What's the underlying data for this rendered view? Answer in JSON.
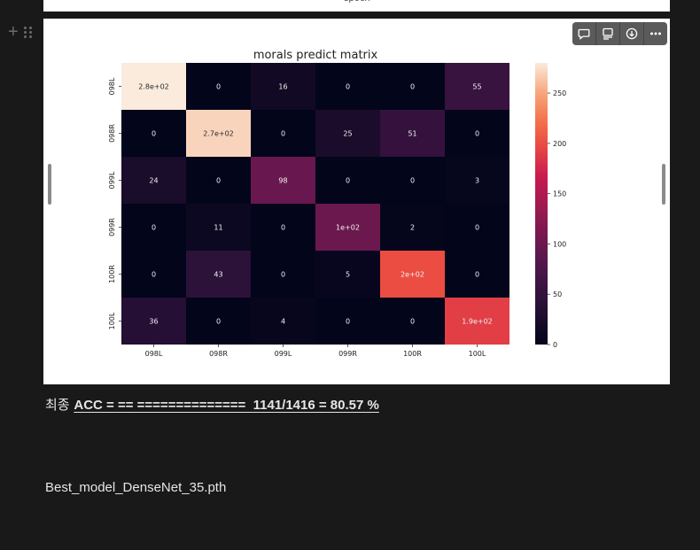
{
  "previous_block": {
    "caption": "epoch"
  },
  "toolbar": {
    "icons": [
      "comment-icon",
      "caption-icon",
      "download-icon",
      "more-icon"
    ]
  },
  "chart_data": {
    "type": "heatmap",
    "title": "morals predict matrix",
    "rows": [
      "098L",
      "098R",
      "099L",
      "099R",
      "100R",
      "100L"
    ],
    "cols": [
      "098L",
      "098R",
      "099L",
      "099R",
      "100R",
      "100L"
    ],
    "values": [
      [
        280,
        0,
        16,
        0,
        0,
        55
      ],
      [
        0,
        270,
        0,
        25,
        51,
        0
      ],
      [
        24,
        0,
        98,
        0,
        0,
        3
      ],
      [
        0,
        11,
        0,
        100,
        2,
        0
      ],
      [
        0,
        43,
        0,
        5,
        200,
        0
      ],
      [
        36,
        0,
        4,
        0,
        0,
        190
      ]
    ],
    "labels": [
      [
        "2.8e+02",
        "0",
        "16",
        "0",
        "0",
        "55"
      ],
      [
        "0",
        "2.7e+02",
        "0",
        "25",
        "51",
        "0"
      ],
      [
        "24",
        "0",
        "98",
        "0",
        "0",
        "3"
      ],
      [
        "0",
        "11",
        "0",
        "1e+02",
        "2",
        "0"
      ],
      [
        "0",
        "43",
        "0",
        "5",
        "2e+02",
        "0"
      ],
      [
        "36",
        "0",
        "4",
        "0",
        "0",
        "1.9e+02"
      ]
    ],
    "colorbar": {
      "min": 0,
      "max": 280,
      "ticks": [
        0,
        50,
        100,
        150,
        200,
        250
      ],
      "colormap": "rocket"
    },
    "grid": false
  },
  "result": {
    "prefix": "최종 ",
    "formula": "ACC = == ==============  1141/1416 = 80.57 %"
  },
  "model_file": "Best_model_DenseNet_35.pth"
}
